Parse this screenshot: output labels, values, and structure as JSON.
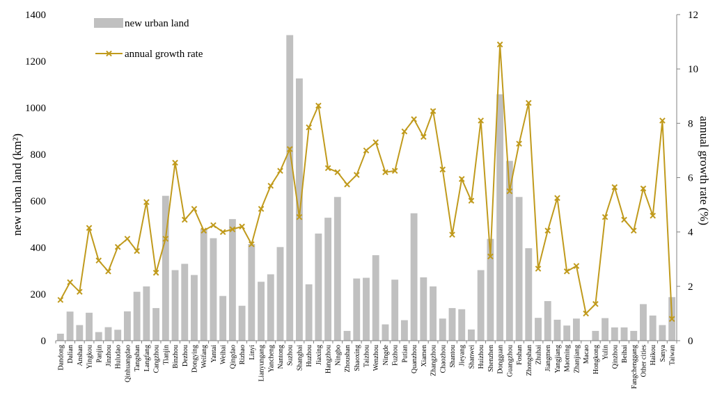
{
  "chart_data": {
    "type": "bar+line",
    "categories": [
      "Dandong",
      "Dalian",
      "Anshan",
      "Yingkou",
      "Panjin",
      "Jinzhou",
      "Huludao",
      "Qinhuangdao",
      "Tangshan",
      "Langfang",
      "Cangzhou",
      "Tianjin",
      "Binzhou",
      "Dezhou",
      "Dongying",
      "Weifang",
      "Yantai",
      "Weihai",
      "Qingdao",
      "Rizhao",
      "Linyi",
      "Lianyungang",
      "Yancheng",
      "Nantong",
      "Suzhou",
      "Shanghai",
      "Huzhou",
      "Jiaxing",
      "Hangzhou",
      "Ningbo",
      "Zhoushan",
      "Shaoxing",
      "Taizhou",
      "Wenzhou",
      "Ningde",
      "Fuzhou",
      "Putian",
      "Quanzhou",
      "Xiamen",
      "Zhangzhou",
      "Chaozhou",
      "Shantou",
      "Jieyang",
      "Shanwei",
      "Huizhou",
      "Shenzhen",
      "Dongguan",
      "Guangzhou",
      "Foshan",
      "Zhongshan",
      "Zhuhai",
      "Jiangmen",
      "Yangjiang",
      "Maoming",
      "Zhanjiang",
      "Macao",
      "Hongkong",
      "Yulin",
      "Qinzhou",
      "Beihai",
      "Fangchenggang",
      "Other cities",
      "Haikou",
      "Sanya",
      "Taiwan"
    ],
    "series": [
      {
        "name": "new urban land",
        "type": "bar",
        "axis": "left",
        "color": "#c0c0c0",
        "values": [
          30,
          125,
          67,
          120,
          37,
          58,
          47,
          126,
          210,
          233,
          140,
          622,
          303,
          330,
          282,
          480,
          440,
          192,
          522,
          150,
          415,
          253,
          285,
          402,
          1312,
          1126,
          242,
          460,
          528,
          617,
          42,
          267,
          270,
          367,
          70,
          262,
          88,
          547,
          272,
          233,
          95,
          140,
          135,
          48,
          303,
          437,
          1058,
          772,
          617,
          397,
          98,
          170,
          90,
          65,
          95,
          0,
          42,
          97,
          57,
          57,
          42,
          157,
          108,
          67,
          187
        ]
      },
      {
        "name": "annual growth rate",
        "type": "line",
        "axis": "right",
        "color": "#c09a1c",
        "marker": "x",
        "values": [
          1.5,
          2.15,
          1.8,
          4.15,
          2.95,
          2.55,
          3.45,
          3.75,
          3.3,
          5.1,
          2.5,
          3.75,
          6.55,
          4.45,
          4.85,
          4.05,
          4.25,
          4.0,
          4.1,
          4.2,
          3.55,
          4.85,
          5.7,
          6.25,
          7.05,
          4.55,
          7.85,
          8.65,
          6.35,
          6.2,
          5.75,
          6.1,
          7.0,
          7.3,
          6.2,
          6.25,
          7.7,
          8.15,
          7.5,
          8.45,
          6.3,
          3.9,
          5.95,
          5.15,
          8.1,
          3.1,
          10.9,
          5.5,
          7.25,
          8.75,
          2.65,
          4.05,
          5.25,
          2.55,
          2.75,
          1.0,
          1.35,
          4.55,
          5.65,
          4.45,
          4.05,
          5.6,
          4.6,
          8.1,
          0.8
        ]
      }
    ],
    "ylabel": "new urban land  (km²)",
    "y2label": "annual growth rate (%)",
    "ylim": [
      0,
      1400
    ],
    "y2lim": [
      0,
      12
    ],
    "yticks": [
      0,
      200,
      400,
      600,
      800,
      1000,
      1200,
      1400
    ],
    "y2ticks": [
      0,
      2,
      4,
      6,
      8,
      10,
      12
    ],
    "legend": [
      "new urban land",
      "annual growth rate"
    ],
    "legend_position": "top-left",
    "grid": false
  }
}
